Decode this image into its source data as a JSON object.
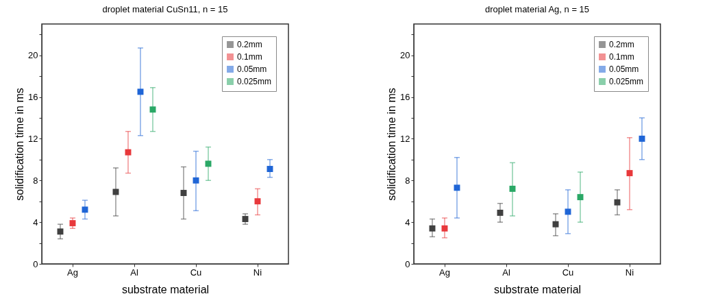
{
  "chart_data": [
    {
      "type": "scatter",
      "title": "droplet material CuSn11, n = 15",
      "xlabel": "substrate material",
      "ylabel": "solidification time in ms",
      "categories": [
        "Ag",
        "Al",
        "Cu",
        "Ni"
      ],
      "ylim": [
        0,
        23
      ],
      "yticks": [
        0,
        {
          "value": 2,
          "label": null
        },
        4,
        {
          "value": 6,
          "label": null
        },
        8,
        {
          "value": 10,
          "label": null
        },
        12,
        {
          "value": 14,
          "label": null
        },
        16,
        {
          "value": 18,
          "label": null
        },
        20,
        {
          "value": 22,
          "label": null
        }
      ],
      "grid": false,
      "legend": "top right",
      "marker": "square",
      "series": [
        {
          "name": "0.2mm",
          "color": "#404040",
          "values": [
            3.1,
            6.9,
            6.8,
            4.3
          ],
          "errors": [
            [
              2.4,
              3.8
            ],
            [
              4.6,
              9.2
            ],
            [
              4.3,
              9.3
            ],
            [
              3.8,
              4.8
            ]
          ]
        },
        {
          "name": "0.1mm",
          "color": "#e8383b",
          "values": [
            3.9,
            10.7,
            null,
            6.0
          ],
          "errors": [
            [
              3.4,
              4.4
            ],
            [
              8.7,
              12.7
            ],
            null,
            [
              4.7,
              7.2
            ]
          ]
        },
        {
          "name": "0.05mm",
          "color": "#1f65d6",
          "values": [
            5.2,
            16.5,
            8.0,
            9.1
          ],
          "errors": [
            [
              4.3,
              6.1
            ],
            [
              12.3,
              20.7
            ],
            [
              5.1,
              10.8
            ],
            [
              8.3,
              10.0
            ]
          ]
        },
        {
          "name": "0.025mm",
          "color": "#2aa866",
          "values": [
            null,
            14.8,
            9.6,
            null
          ],
          "errors": [
            null,
            [
              12.7,
              16.9
            ],
            [
              8.0,
              11.2
            ],
            null
          ]
        }
      ]
    },
    {
      "type": "scatter",
      "title": "droplet material Ag, n = 15",
      "xlabel": "substrate material",
      "ylabel": "solidification time in ms",
      "categories": [
        "Ag",
        "Al",
        "Cu",
        "Ni"
      ],
      "ylim": [
        0,
        23
      ],
      "yticks": [
        0,
        {
          "value": 2,
          "label": null
        },
        4,
        {
          "value": 6,
          "label": null
        },
        8,
        {
          "value": 10,
          "label": null
        },
        12,
        {
          "value": 14,
          "label": null
        },
        16,
        {
          "value": 18,
          "label": null
        },
        20,
        {
          "value": 22,
          "label": null
        }
      ],
      "grid": false,
      "legend": "top right",
      "marker": "square",
      "series": [
        {
          "name": "0.2mm",
          "color": "#404040",
          "values": [
            3.4,
            4.9,
            3.8,
            5.9
          ],
          "errors": [
            [
              2.6,
              4.3
            ],
            [
              4.0,
              5.8
            ],
            [
              2.7,
              4.8
            ],
            [
              4.7,
              7.1
            ]
          ]
        },
        {
          "name": "0.1mm",
          "color": "#e8383b",
          "values": [
            3.4,
            null,
            null,
            8.7
          ],
          "errors": [
            [
              2.5,
              4.4
            ],
            null,
            null,
            [
              5.2,
              12.1
            ]
          ]
        },
        {
          "name": "0.05mm",
          "color": "#1f65d6",
          "values": [
            7.3,
            null,
            5.0,
            12.0
          ],
          "errors": [
            [
              4.4,
              10.2
            ],
            null,
            [
              2.9,
              7.1
            ],
            [
              10.0,
              14.0
            ]
          ]
        },
        {
          "name": "0.025mm",
          "color": "#2aa866",
          "values": [
            null,
            7.2,
            6.4,
            null
          ],
          "errors": [
            null,
            [
              4.6,
              9.7
            ],
            [
              4.0,
              8.8
            ],
            null
          ]
        }
      ]
    }
  ]
}
